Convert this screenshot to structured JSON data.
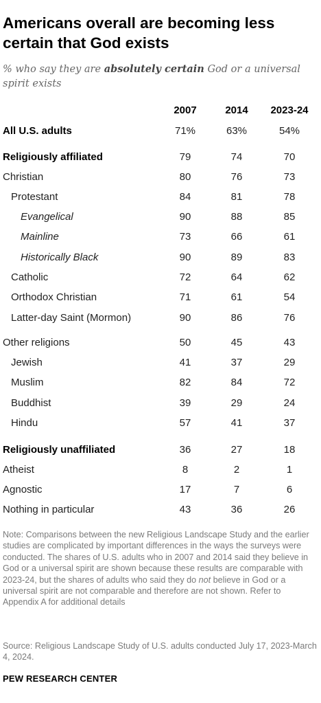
{
  "title": "Americans overall are becoming less certain that God exists",
  "subtitle_prefix": "% who say they are ",
  "subtitle_emphasis": "absolutely certain",
  "subtitle_suffix": " God or a universal spirit exists",
  "chart_data": {
    "type": "table",
    "columns": [
      "2007",
      "2014",
      "2023-24"
    ],
    "rows": [
      {
        "label": "All U.S. adults",
        "level": 0,
        "bold": true,
        "values": [
          "71%",
          "63%",
          "54%"
        ]
      },
      {
        "label": "Religiously affiliated",
        "level": 0,
        "bold": true,
        "values": [
          "79",
          "74",
          "70"
        ]
      },
      {
        "label": "Christian",
        "level": 0,
        "bold": false,
        "values": [
          "80",
          "76",
          "73"
        ]
      },
      {
        "label": "Protestant",
        "level": 1,
        "bold": false,
        "values": [
          "84",
          "81",
          "78"
        ]
      },
      {
        "label": "Evangelical",
        "level": 2,
        "bold": false,
        "values": [
          "90",
          "88",
          "85"
        ]
      },
      {
        "label": "Mainline",
        "level": 2,
        "bold": false,
        "values": [
          "73",
          "66",
          "61"
        ]
      },
      {
        "label": "Historically Black",
        "level": 2,
        "bold": false,
        "values": [
          "90",
          "89",
          "83"
        ]
      },
      {
        "label": "Catholic",
        "level": 1,
        "bold": false,
        "values": [
          "72",
          "64",
          "62"
        ]
      },
      {
        "label": "Orthodox Christian",
        "level": 1,
        "bold": false,
        "values": [
          "71",
          "61",
          "54"
        ]
      },
      {
        "label": "Latter-day Saint (Mormon)",
        "level": 1,
        "bold": false,
        "values": [
          "90",
          "86",
          "76"
        ]
      },
      {
        "label": "Other religions",
        "level": 0,
        "bold": false,
        "values": [
          "50",
          "45",
          "43"
        ]
      },
      {
        "label": "Jewish",
        "level": 1,
        "bold": false,
        "values": [
          "41",
          "37",
          "29"
        ]
      },
      {
        "label": "Muslim",
        "level": 1,
        "bold": false,
        "values": [
          "82",
          "84",
          "72"
        ]
      },
      {
        "label": "Buddhist",
        "level": 1,
        "bold": false,
        "values": [
          "39",
          "29",
          "24"
        ]
      },
      {
        "label": "Hindu",
        "level": 1,
        "bold": false,
        "values": [
          "57",
          "41",
          "37"
        ]
      },
      {
        "label": "Religiously unaffiliated",
        "level": 0,
        "bold": true,
        "values": [
          "36",
          "27",
          "18"
        ]
      },
      {
        "label": "Atheist",
        "level": 0,
        "bold": false,
        "values": [
          "8",
          "2",
          "1"
        ]
      },
      {
        "label": "Agnostic",
        "level": 0,
        "bold": false,
        "values": [
          "17",
          "7",
          "6"
        ]
      },
      {
        "label": "Nothing in particular",
        "level": 0,
        "bold": false,
        "values": [
          "43",
          "36",
          "26"
        ]
      }
    ]
  },
  "note_part1": "Note: Comparisons between the new Religious Landscape Study and the earlier studies are complicated by important differences in the ways the surveys were conducted. The shares of U.S. adults who in 2007 and 2014 said they believe in God or a universal spirit are shown because these results are comparable with 2023-24, but the shares of adults who said they do ",
  "note_emphasis": "not",
  "note_part2": " believe in God or a universal spirit are not comparable and therefore are not shown. Refer to Appendix A for additional details",
  "source": "Source: Religious Landscape Study of U.S. adults conducted July 17, 2023-March 4, 2024.",
  "brand": "PEW RESEARCH CENTER"
}
